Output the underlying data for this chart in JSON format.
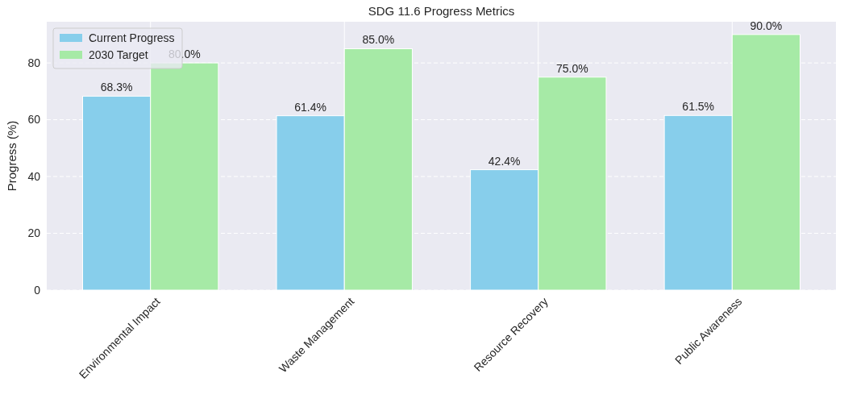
{
  "chart_data": {
    "type": "bar",
    "title": "SDG 11.6 Progress Metrics",
    "ylabel": "Progress (%)",
    "categories": [
      "Environmental Impact",
      "Waste Management",
      "Resource Recovery",
      "Public Awareness"
    ],
    "series": [
      {
        "name": "Current Progress",
        "color": "#87ceeb",
        "values": [
          68.3,
          61.4,
          42.4,
          61.5
        ],
        "value_labels": [
          "68.3%",
          "61.4%",
          "42.4%",
          "61.5%"
        ]
      },
      {
        "name": "2030 Target",
        "color": "#a6eaa6",
        "values": [
          80,
          85,
          75,
          90
        ],
        "value_labels": [
          "80.0%",
          "85.0%",
          "75.0%",
          "90.0%"
        ]
      }
    ],
    "ylim": [
      0,
      94.5
    ],
    "yticks": [
      0,
      20,
      40,
      60,
      80
    ],
    "grid": true,
    "legend": "top left"
  }
}
